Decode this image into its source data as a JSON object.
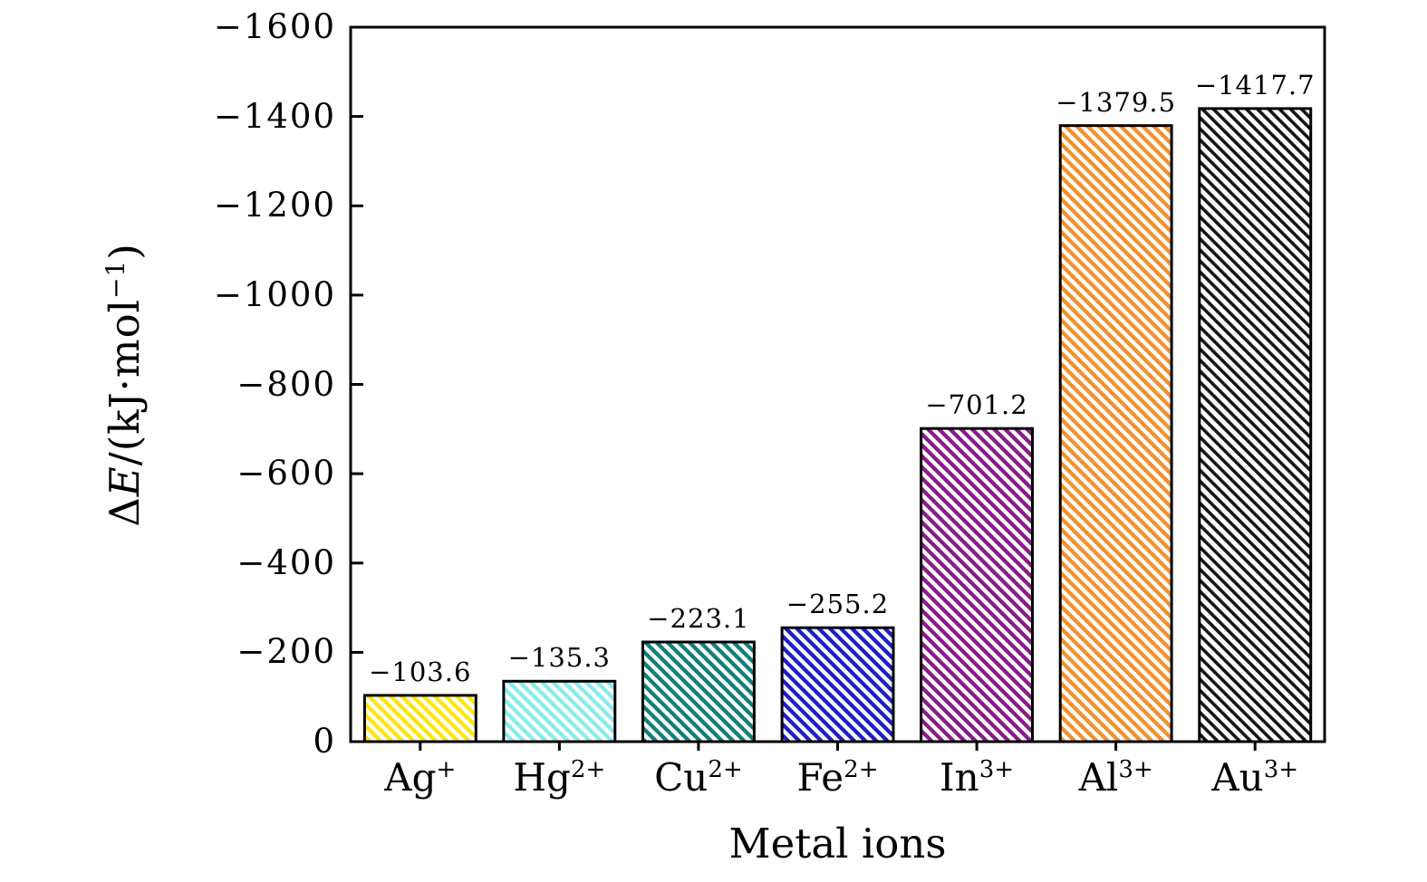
{
  "figure": {
    "background": "#ffffff",
    "axis_color": "#000000"
  },
  "chart_data": {
    "type": "bar",
    "title": "",
    "xlabel": "Metal ions",
    "ylabel": "ΔE/(kJ·mol⁻¹)",
    "ylabel_parts": [
      {
        "text": "Δ",
        "style": "normal"
      },
      {
        "text": "E",
        "style": "italic"
      },
      {
        "text": "/(kJ·mol",
        "style": "normal"
      },
      {
        "text": "−1",
        "style": "sup"
      },
      {
        "text": ")",
        "style": "normal"
      }
    ],
    "categories": [
      {
        "base": "Ag",
        "sup": "+"
      },
      {
        "base": "Hg",
        "sup": "2+"
      },
      {
        "base": "Cu",
        "sup": "2+"
      },
      {
        "base": "Fe",
        "sup": "2+"
      },
      {
        "base": "In",
        "sup": "3+"
      },
      {
        "base": "Al",
        "sup": "3+"
      },
      {
        "base": "Au",
        "sup": "3+"
      }
    ],
    "values": [
      -103.6,
      -135.3,
      -223.1,
      -255.2,
      -701.2,
      -1379.5,
      -1417.7
    ],
    "value_labels": [
      "−103.6",
      "−135.3",
      "−223.1",
      "−255.2",
      "−701.2",
      "−1379.5",
      "−1417.7"
    ],
    "ylim": [
      0,
      -1600
    ],
    "yticks": [
      0,
      -200,
      -400,
      -600,
      -800,
      -1000,
      -1200,
      -1400,
      -1600
    ],
    "ytick_labels": [
      "0",
      "−200",
      "−400",
      "−600",
      "−800",
      "−1000",
      "−1200",
      "−1400",
      "−1600"
    ],
    "grid": false,
    "legend": null,
    "style": {
      "bar_colors": [
        "#FFE60A",
        "#87ECEC",
        "#117F7C",
        "#1E1ECC",
        "#8A1B8A",
        "#F2912D",
        "#141414"
      ],
      "hatch_pattern": "diagonal-backslash",
      "hatch_background": "#FFFFFF",
      "hatch_period": 8.6,
      "hatch_stripe_widths": [
        4.3,
        4.3,
        4.3,
        4.3,
        4.3,
        4.3,
        3.6
      ],
      "bar_edge_color": "#000000",
      "bar_width_fraction": 0.8
    }
  }
}
